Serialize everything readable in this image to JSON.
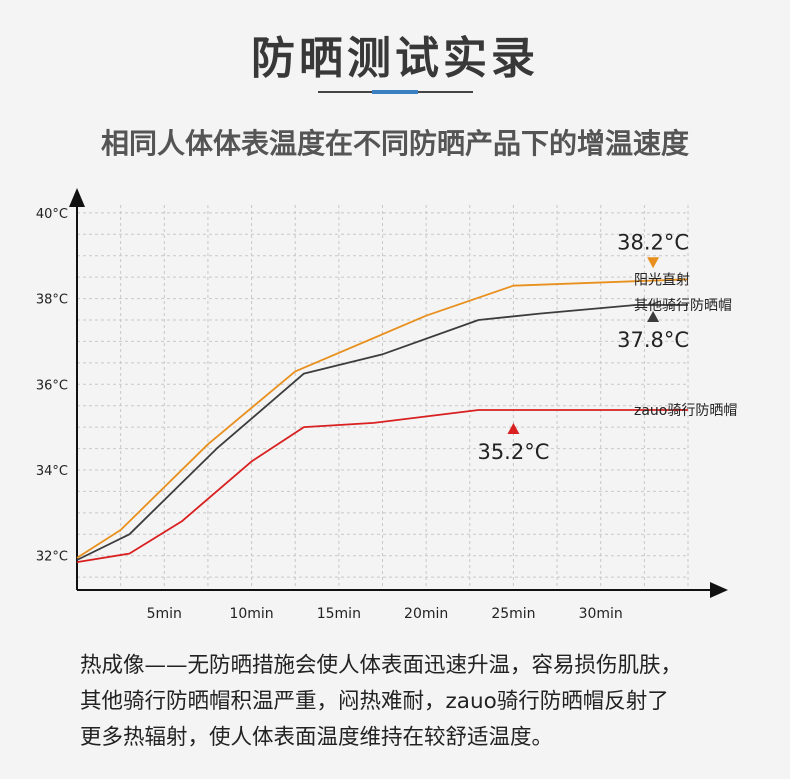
{
  "header": {
    "title": "防晒测试实录",
    "subtitle": "相同人体体表温度在不同防晒产品下的增温速度"
  },
  "colors": {
    "sunlight": "#e8901e",
    "other": "#3c3c3c",
    "zauo": "#d91f1f",
    "grid": "#c8c8c8",
    "axis": "#111111"
  },
  "chart_data": {
    "type": "line",
    "x_ticks": [
      "5min",
      "10min",
      "15min",
      "20min",
      "25min",
      "30min"
    ],
    "x_tick_values": [
      5,
      10,
      15,
      20,
      25,
      30
    ],
    "y_ticks": [
      "32°C",
      "34°C",
      "36°C",
      "38°C",
      "40°C"
    ],
    "y_tick_values": [
      32,
      34,
      36,
      38,
      40
    ],
    "xlim": [
      0,
      35
    ],
    "ylim": [
      31.2,
      40.3
    ],
    "grid": true,
    "series": [
      {
        "name": "阳光直射",
        "color": "#e8901e",
        "x": [
          0,
          2.5,
          7.5,
          12.5,
          20,
          25,
          35
        ],
        "y": [
          31.95,
          32.6,
          34.6,
          36.3,
          37.6,
          38.3,
          38.45
        ]
      },
      {
        "name": "其他骑行防晒帽",
        "color": "#3c3c3c",
        "x": [
          0,
          3,
          8,
          13,
          17.5,
          23,
          26.5,
          32,
          35
        ],
        "y": [
          31.9,
          32.5,
          34.5,
          36.25,
          36.7,
          37.5,
          37.65,
          37.85,
          37.85
        ]
      },
      {
        "name": "zauo骑行防晒帽",
        "color": "#d91f1f",
        "x": [
          0,
          3,
          6,
          10,
          13,
          17,
          23,
          25,
          35
        ],
        "y": [
          31.85,
          32.05,
          32.8,
          34.2,
          35.0,
          35.1,
          35.4,
          35.4,
          35.4
        ]
      }
    ],
    "annotations": [
      {
        "text": "38.2°C",
        "x": 33,
        "y": 38.2,
        "color": "#e8901e",
        "marker": "down"
      },
      {
        "text": "37.8°C",
        "x": 33,
        "y": 37.8,
        "color": "#3c3c3c",
        "marker": "up"
      },
      {
        "text": "35.2°C",
        "x": 25,
        "y": 35.2,
        "color": "#d91f1f",
        "marker": "up"
      }
    ]
  },
  "description": {
    "lines": [
      "热成像——无防晒措施会使人体表面迅速升温，容易损伤肌肤，",
      "其他骑行防晒帽积温严重，闷热难耐，zauo骑行防晒帽反射了",
      "更多热辐射，使人体表面温度维持在较舒适温度。"
    ]
  }
}
